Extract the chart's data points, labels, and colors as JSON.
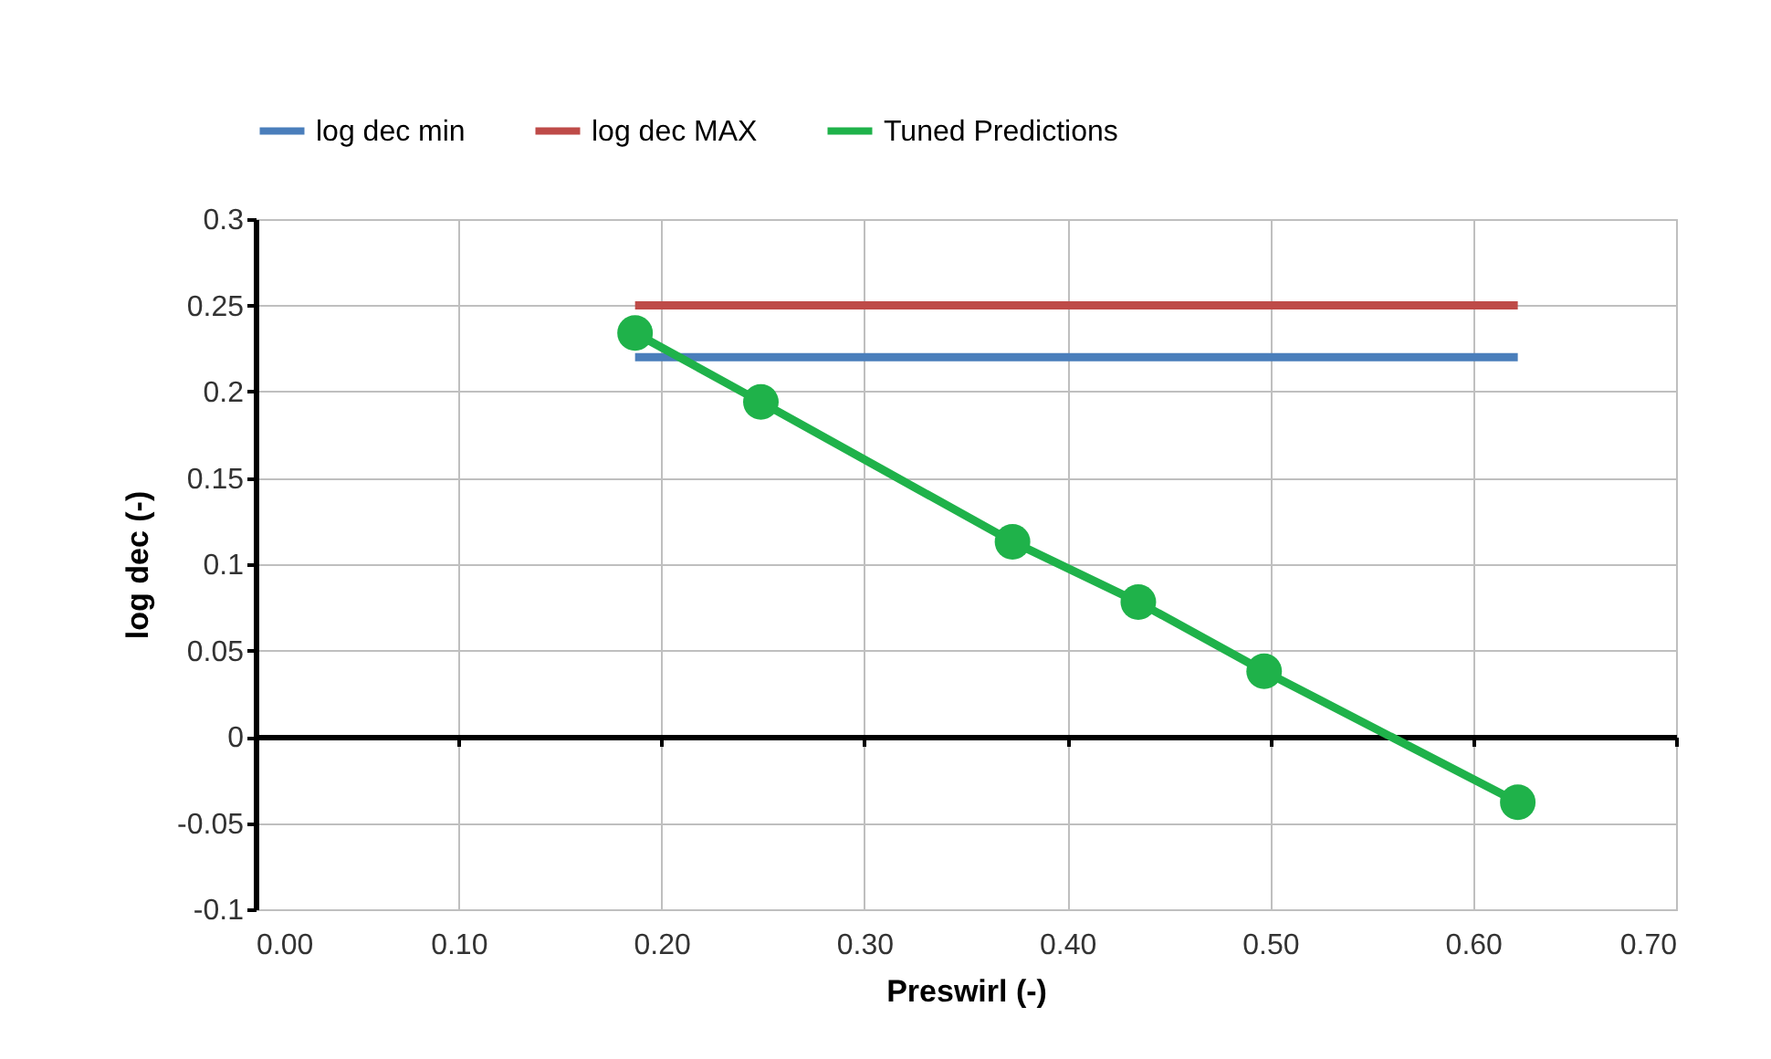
{
  "chart_data": {
    "type": "line",
    "xlabel": "Preswirl (-)",
    "ylabel": "log dec (-)",
    "xlim": [
      0,
      0.7
    ],
    "xticks": [
      {
        "value": 0,
        "label": "0.00"
      },
      {
        "value": 0.1,
        "label": "0.10"
      },
      {
        "value": 0.2,
        "label": "0.20"
      },
      {
        "value": 0.3,
        "label": "0.30"
      },
      {
        "value": 0.4,
        "label": "0.40"
      },
      {
        "value": 0.5,
        "label": "0.50"
      },
      {
        "value": 0.6,
        "label": "0.60"
      },
      {
        "value": 0.7,
        "label": "0.70"
      }
    ],
    "ylim": [
      -0.1,
      0.3
    ],
    "yticks": [
      -0.1,
      -0.05,
      0,
      0.05,
      0.1,
      0.15,
      0.2,
      0.25,
      0.3
    ],
    "grid": true,
    "legend": "top",
    "series": [
      {
        "name": "log dec min",
        "color": "#4a7ebb",
        "marker": "none",
        "x": [
          0.187,
          0.622
        ],
        "values": [
          0.22,
          0.22
        ]
      },
      {
        "name": "log dec MAX",
        "color": "#be4b48",
        "marker": "none",
        "x": [
          0.187,
          0.622
        ],
        "values": [
          0.25,
          0.25
        ]
      },
      {
        "name": "Tuned Predictions",
        "color": "#1fb24a",
        "marker": "circle",
        "x": [
          0.187,
          0.249,
          0.373,
          0.435,
          0.497,
          0.622
        ],
        "values": [
          0.234,
          0.194,
          0.113,
          0.078,
          0.038,
          -0.038
        ]
      }
    ]
  }
}
